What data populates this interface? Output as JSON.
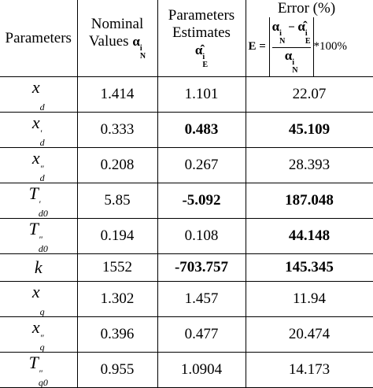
{
  "header": {
    "parameters": "Parameters",
    "nominal": {
      "lines": [
        "Nominal",
        "Values"
      ],
      "symbol": {
        "base": "α",
        "sup": "i",
        "sub": "N"
      }
    },
    "estimates": {
      "lines": [
        "Parameters",
        "Estimates"
      ],
      "symbol": {
        "base": "α̂",
        "sup": "i",
        "sub": "E"
      }
    },
    "error": {
      "title": "Error (%)",
      "formula": {
        "lhs": "E",
        "eq": "=",
        "num_a": {
          "base": "α",
          "sup": "i",
          "sub": "N"
        },
        "minus": "−",
        "num_b": {
          "base": "α̂",
          "sup": "i",
          "sub": "E"
        },
        "den": {
          "base": "α",
          "sup": "i",
          "sub": "N"
        },
        "tail": "*100%"
      }
    }
  },
  "rows": [
    {
      "param": {
        "base": "x",
        "sub": "d"
      },
      "nominal": 1.414,
      "estimate": 1.101,
      "error": 22.07
    },
    {
      "param": {
        "base": "x",
        "sup": "'",
        "sub": "d"
      },
      "nominal": 0.333,
      "estimate": 0.483,
      "error": 45.109
    },
    {
      "param": {
        "base": "x",
        "sup": "\"",
        "sub": "d"
      },
      "nominal": 0.208,
      "estimate": 0.267,
      "error": 28.393
    },
    {
      "param": {
        "base": "T",
        "sup": "'",
        "sub": "d0"
      },
      "nominal": 5.85,
      "estimate": -5.092,
      "error": 187.048
    },
    {
      "param": {
        "base": "T",
        "sup": "\"",
        "sub": "d0"
      },
      "nominal": 0.194,
      "estimate": 0.108,
      "error": 44.148
    },
    {
      "param": {
        "base": "k"
      },
      "nominal": 1552,
      "estimate": -703.757,
      "error": 145.345
    },
    {
      "param": {
        "base": "x",
        "sub": "q"
      },
      "nominal": 1.302,
      "estimate": 1.457,
      "error": 11.94
    },
    {
      "param": {
        "base": "x",
        "sup": "\"",
        "sub": "q"
      },
      "nominal": 0.396,
      "estimate": 0.477,
      "error": 20.474
    },
    {
      "param": {
        "base": "T",
        "sup": "\"",
        "sub": "q0"
      },
      "nominal": 0.955,
      "estimate": 1.0904,
      "error": 14.173
    }
  ]
}
